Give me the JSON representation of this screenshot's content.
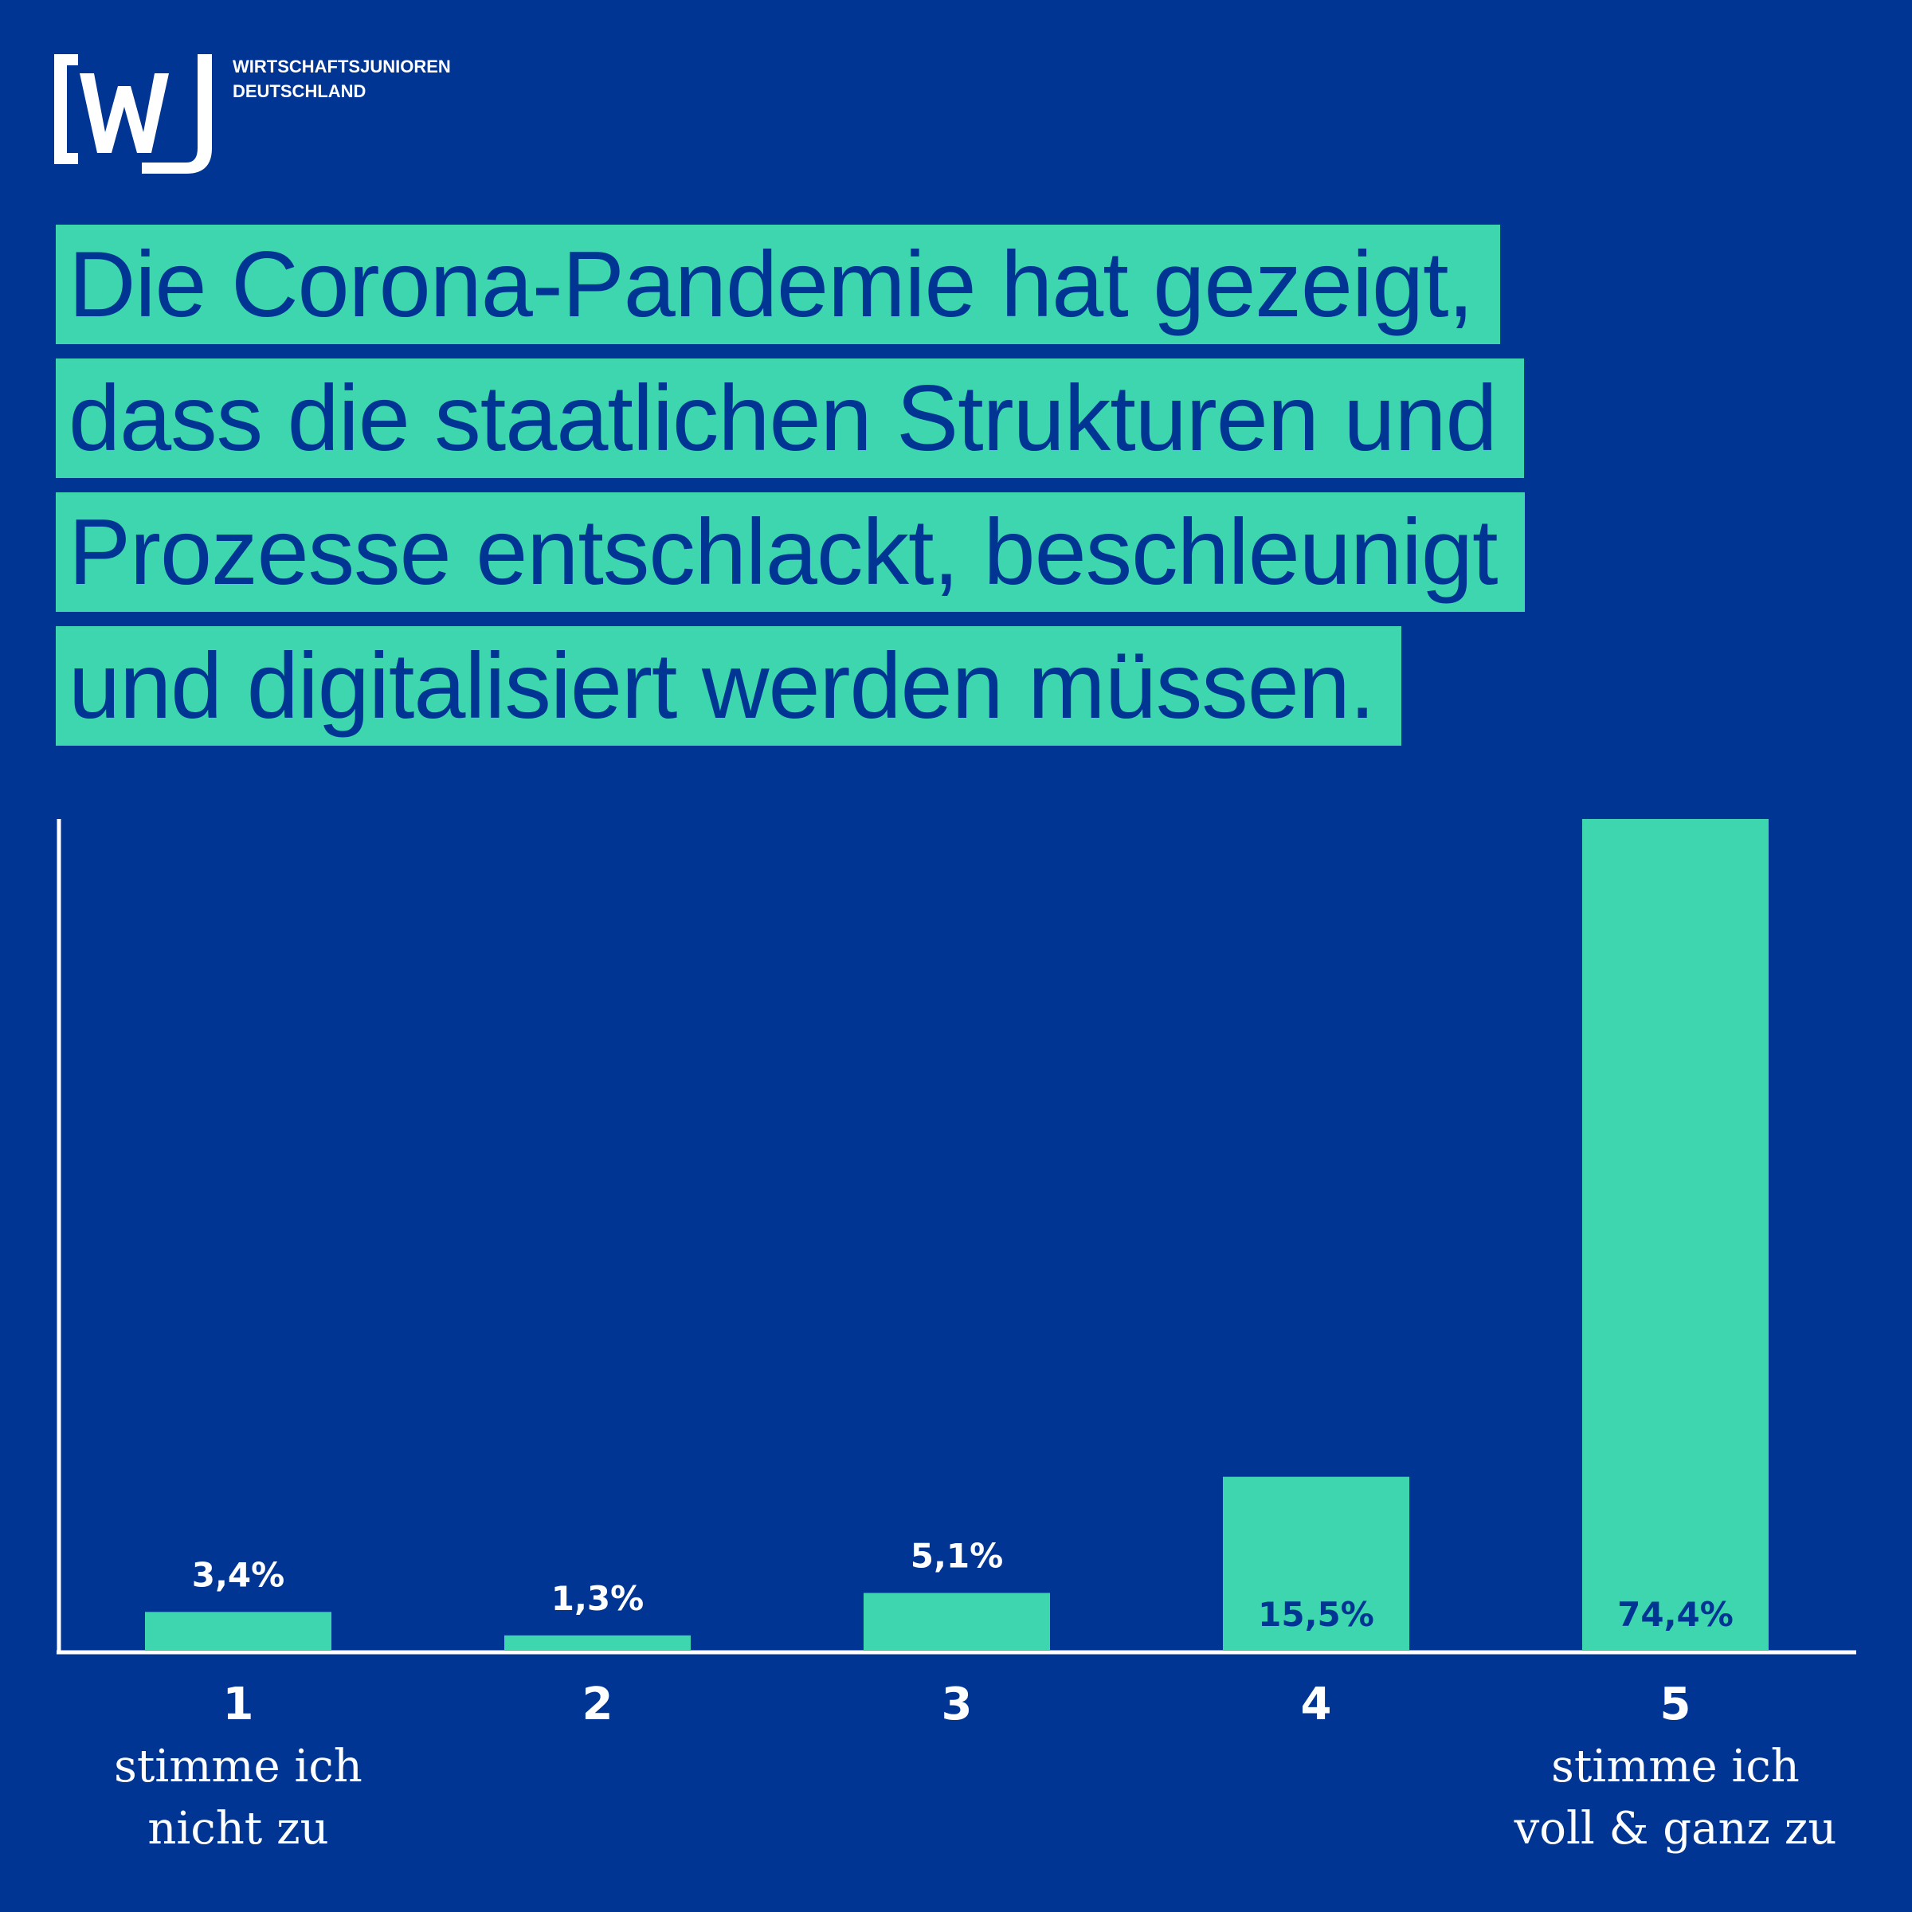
{
  "logo": {
    "mark": "WJ",
    "line1": "WIRTSCHAFTSJUNIOREN",
    "line2": "DEUTSCHLAND"
  },
  "headline": {
    "lines": [
      "Die Corona-Pandemie hat gezeigt,",
      "dass die staatlichen Strukturen und",
      "Prozesse entschlackt, beschleunigt",
      "und digitalisiert werden müssen."
    ]
  },
  "colors": {
    "background": "#003594",
    "accent": "#3dd6ae",
    "text_light": "#ffffff",
    "text_dark": "#003594"
  },
  "chart_data": {
    "type": "bar",
    "title": "Die Corona-Pandemie hat gezeigt, dass die staatlichen Strukturen und Prozesse entschlackt, beschleunigt und digitalisiert werden müssen.",
    "categories": [
      "1",
      "2",
      "3",
      "4",
      "5"
    ],
    "category_descriptions": [
      [
        "stimme ich",
        "nicht zu"
      ],
      [],
      [],
      [],
      [
        "stimme ich",
        "voll & ganz zu"
      ]
    ],
    "values": [
      3.4,
      1.3,
      5.1,
      15.5,
      74.4
    ],
    "value_labels": [
      "3,4%",
      "1,3%",
      "5,1%",
      "15,5%",
      "74,4%"
    ],
    "ylim": [
      0,
      74.4
    ],
    "xlabel": "",
    "ylabel": "",
    "grid": false,
    "legend": "none"
  }
}
